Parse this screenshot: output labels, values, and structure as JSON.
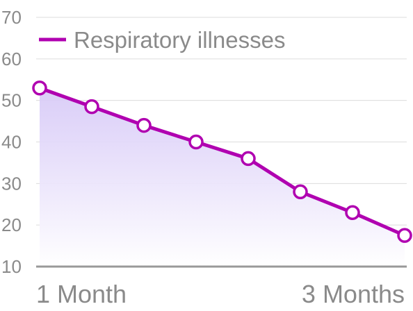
{
  "chart_data": {
    "type": "area",
    "y_ticks": [
      10,
      20,
      30,
      40,
      50,
      60,
      70
    ],
    "ylim": [
      10,
      70
    ],
    "x_tick_labels": [
      "1 Month",
      "3 Months"
    ],
    "series": [
      {
        "name": "Respiratory illnesses",
        "values": [
          53,
          48.5,
          44,
          40,
          36,
          28,
          23,
          17.5
        ],
        "color": "#b000b0"
      }
    ],
    "fill_gradient": [
      "#d6c8f7",
      "#ffffff"
    ],
    "grid": true,
    "legend": "top"
  }
}
